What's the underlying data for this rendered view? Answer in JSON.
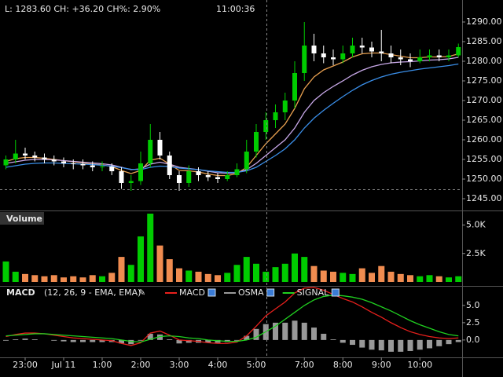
{
  "chart_data": [
    {
      "type": "candlestick",
      "title": "L: 1283.60 CH: +36.20 CH%: 2.90%",
      "annotation": "11:00:36",
      "up_color": "#00cc00",
      "down_color": "#ffffff",
      "open": [
        1253.5,
        1255,
        1256.5,
        1256,
        1255.5,
        1255,
        1254.5,
        1254,
        1253.8,
        1253.5,
        1253,
        1253.2,
        1252,
        1249,
        1249.5,
        1254,
        1260,
        1256,
        1251,
        1249,
        1252,
        1251,
        1250.5,
        1250,
        1251,
        1252.5,
        1257,
        1262,
        1265,
        1267,
        1270,
        1277,
        1284,
        1282,
        1281,
        1280.5,
        1282,
        1284,
        1283.5,
        1282.5,
        1282,
        1281,
        1280.5,
        1280,
        1281,
        1281.5,
        1281,
        1281.5
      ],
      "high": [
        1256,
        1260,
        1258,
        1257,
        1256.5,
        1256,
        1255.5,
        1255,
        1255,
        1254.5,
        1254.5,
        1254,
        1253,
        1251,
        1257,
        1264,
        1262,
        1257,
        1252,
        1253.5,
        1253,
        1252,
        1251.5,
        1252,
        1254,
        1260,
        1264,
        1267,
        1269,
        1272,
        1280,
        1290,
        1287,
        1284,
        1283,
        1284,
        1286,
        1286,
        1285,
        1288,
        1284,
        1283,
        1282,
        1283,
        1283,
        1283,
        1283,
        1284.5
      ],
      "low": [
        1252.5,
        1254,
        1255,
        1254.5,
        1254,
        1253.5,
        1253,
        1252.5,
        1252.5,
        1252,
        1252,
        1251,
        1247.5,
        1247,
        1248.5,
        1253,
        1255,
        1250,
        1247,
        1248,
        1249.5,
        1249.5,
        1249,
        1249.5,
        1250.5,
        1251.5,
        1255.5,
        1260,
        1263,
        1265,
        1268,
        1275,
        1280,
        1279.5,
        1279,
        1279.5,
        1281,
        1282,
        1281,
        1280,
        1279.5,
        1279,
        1278.5,
        1279.5,
        1280,
        1280,
        1280,
        1281
      ],
      "close": [
        1255,
        1256.5,
        1256,
        1255.5,
        1255,
        1254.5,
        1254,
        1253.8,
        1253.5,
        1253,
        1253.2,
        1252,
        1249,
        1249.5,
        1254,
        1260,
        1256,
        1251,
        1249,
        1252,
        1251,
        1250.5,
        1250,
        1251,
        1252.5,
        1257,
        1262,
        1265,
        1267,
        1270,
        1277,
        1284,
        1282,
        1281,
        1280.5,
        1282,
        1284,
        1283.5,
        1282.5,
        1282,
        1281,
        1280.5,
        1280,
        1281,
        1281.5,
        1281,
        1281.5,
        1283.6
      ],
      "series": [
        {
          "color": "#e8a050",
          "values": [
            1254.5,
            1255.2,
            1255.5,
            1255.5,
            1255.3,
            1255,
            1254.7,
            1254.4,
            1254.1,
            1253.8,
            1253.6,
            1253.2,
            1252.2,
            1251.4,
            1252.2,
            1254.8,
            1255.3,
            1253.8,
            1252.2,
            1252.1,
            1251.8,
            1251.3,
            1250.9,
            1250.9,
            1251.4,
            1253,
            1256,
            1259,
            1261.5,
            1264,
            1268,
            1273,
            1276,
            1277.8,
            1278.8,
            1279.8,
            1281.1,
            1281.9,
            1282.1,
            1282.1,
            1281.7,
            1281.3,
            1280.9,
            1280.9,
            1281.1,
            1281.1,
            1281.2,
            1281.9
          ]
        },
        {
          "color": "#c8a8e8",
          "values": [
            1254,
            1254.4,
            1254.8,
            1255,
            1255,
            1254.9,
            1254.7,
            1254.5,
            1254.3,
            1254.1,
            1253.9,
            1253.6,
            1253,
            1252.4,
            1252.6,
            1253.8,
            1254.3,
            1253.8,
            1253,
            1252.7,
            1252.4,
            1252,
            1251.6,
            1251.5,
            1251.6,
            1252.4,
            1254,
            1256,
            1258,
            1260,
            1263,
            1267,
            1270,
            1272,
            1273.6,
            1275,
            1276.5,
            1277.7,
            1278.6,
            1279.2,
            1279.6,
            1279.8,
            1279.9,
            1280.1,
            1280.3,
            1280.4,
            1280.6,
            1281
          ]
        },
        {
          "color": "#3a8ee8",
          "values": [
            1253,
            1253.4,
            1253.8,
            1254,
            1254.1,
            1254.1,
            1254,
            1253.9,
            1253.8,
            1253.7,
            1253.5,
            1253.3,
            1252.9,
            1252.5,
            1252.4,
            1253,
            1253.3,
            1253.2,
            1252.8,
            1252.6,
            1252.4,
            1252.1,
            1251.9,
            1251.7,
            1251.7,
            1252.1,
            1253,
            1254.5,
            1256,
            1257.7,
            1260,
            1263,
            1265.5,
            1267.5,
            1269.3,
            1271,
            1272.6,
            1274,
            1275.1,
            1276,
            1276.7,
            1277.2,
            1277.6,
            1278,
            1278.3,
            1278.6,
            1278.9,
            1279.3
          ]
        }
      ],
      "ylim": [
        1242,
        1295.6
      ],
      "yticks": [
        {
          "value": 1245,
          "label": "1245.00"
        },
        {
          "value": 1250,
          "label": "1250.00"
        },
        {
          "value": 1255,
          "label": "1255.00"
        },
        {
          "value": 1260,
          "label": "1260.00"
        },
        {
          "value": 1265,
          "label": "1265.00"
        },
        {
          "value": 1270,
          "label": "1270.00"
        },
        {
          "value": 1275,
          "label": "1275.00"
        },
        {
          "value": 1280,
          "label": "1280.00"
        },
        {
          "value": 1285,
          "label": "1285.00"
        },
        {
          "value": 1290,
          "label": "1290.00"
        }
      ]
    },
    {
      "type": "bar",
      "title": "Volume",
      "up_color": "#00cc00",
      "down_color": "#f08c50",
      "values": [
        1800,
        900,
        700,
        600,
        500,
        600,
        400,
        500,
        400,
        600,
        500,
        800,
        2200,
        1500,
        4000,
        6000,
        3200,
        2000,
        1200,
        1000,
        900,
        700,
        600,
        800,
        1500,
        2200,
        1600,
        900,
        1300,
        1600,
        2500,
        2200,
        1400,
        1000,
        900,
        800,
        700,
        1200,
        800,
        1400,
        900,
        700,
        600,
        500,
        600,
        500,
        400,
        500
      ],
      "ylim": [
        0,
        6000
      ],
      "yticks": [
        {
          "value": 2500,
          "label": "2.5K"
        },
        {
          "value": 5000,
          "label": "5.0K"
        }
      ]
    },
    {
      "type": "macd",
      "title": "MACD",
      "subtitle": "(12, 26, 9 - EMA, EMA)",
      "categories": [
        null,
        null,
        "23:00",
        null,
        null,
        null,
        "Jul 11",
        null,
        null,
        null,
        "1:00",
        null,
        null,
        null,
        "2:00",
        null,
        null,
        null,
        "3:00",
        null,
        null,
        null,
        "4:00",
        null,
        null,
        null,
        "5:00",
        null,
        null,
        null,
        null,
        "7:00",
        null,
        null,
        null,
        "8:00",
        null,
        null,
        null,
        "9:00",
        null,
        null,
        null,
        "10:00",
        null,
        null,
        null,
        null
      ],
      "series": [
        {
          "name": "MACD",
          "color": "#e8201c",
          "values": [
            0.5,
            0.8,
            1,
            1,
            0.9,
            0.7,
            0.5,
            0.3,
            0.2,
            0.1,
            0,
            -0.1,
            -0.5,
            -0.8,
            -0.4,
            1,
            1.3,
            0.7,
            0,
            -0.1,
            -0.2,
            -0.4,
            -0.5,
            -0.5,
            -0.3,
            0.6,
            2,
            3.5,
            4.5,
            5.5,
            6.8,
            7.5,
            7.6,
            7.2,
            6.6,
            6,
            5.5,
            4.8,
            4,
            3.3,
            2.5,
            1.8,
            1.2,
            0.8,
            0.5,
            0.3,
            0.2,
            0.3
          ]
        },
        {
          "name": "OSMA",
          "color": "#999999",
          "values": [
            -0.1,
            0.1,
            0.2,
            0.1,
            0,
            -0.1,
            -0.2,
            -0.3,
            -0.3,
            -0.3,
            -0.3,
            -0.3,
            -0.5,
            -0.6,
            -0.1,
            0.9,
            0.8,
            0.1,
            -0.5,
            -0.4,
            -0.4,
            -0.4,
            -0.4,
            -0.3,
            -0.1,
            0.6,
            1.6,
            2.3,
            2.5,
            2.5,
            2.8,
            2.5,
            1.8,
            0.9,
            0.1,
            -0.4,
            -0.7,
            -1.1,
            -1.4,
            -1.5,
            -1.7,
            -1.7,
            -1.6,
            -1.4,
            -1.2,
            -0.9,
            -0.6,
            -0.3
          ]
        },
        {
          "name": "SIGNAL",
          "color": "#20d020",
          "values": [
            0.6,
            0.7,
            0.8,
            0.9,
            0.9,
            0.8,
            0.7,
            0.6,
            0.5,
            0.4,
            0.3,
            0.2,
            0,
            -0.2,
            -0.3,
            0.1,
            0.5,
            0.6,
            0.5,
            0.3,
            0.2,
            0,
            -0.1,
            -0.2,
            -0.2,
            0,
            0.4,
            1.2,
            2,
            3,
            4,
            5,
            5.8,
            6.3,
            6.5,
            6.4,
            6.2,
            5.9,
            5.4,
            4.8,
            4.2,
            3.5,
            2.8,
            2.2,
            1.7,
            1.2,
            0.8,
            0.6
          ]
        }
      ],
      "ylim": [
        -2.4,
        7.6
      ],
      "yticks": [
        {
          "value": 0,
          "label": "0.0"
        },
        {
          "value": 2.5,
          "label": "2.5"
        },
        {
          "value": 5,
          "label": "5.0"
        }
      ]
    }
  ]
}
